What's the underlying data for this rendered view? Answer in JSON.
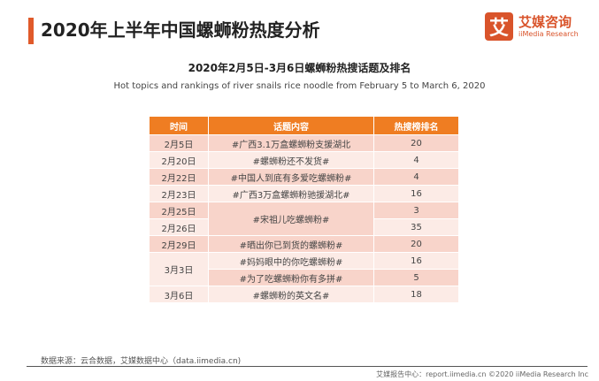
{
  "header": {
    "title": "2020年上半年中国螺蛳粉热度分析"
  },
  "logo": {
    "mark": "艾",
    "cn": "艾媒咨询",
    "en": "iiMedia Research",
    "color": "#d9542b"
  },
  "subtitle_cn": "2020年2月5日-3月6日螺蛳粉热搜话题及排名",
  "subtitle_en": "Hot topics and rankings of river snails rice noodle from February 5 to March 6, 2020",
  "table": {
    "headers": [
      "时间",
      "话题内容",
      "热搜榜排名"
    ],
    "rows": [
      {
        "date": "2月5日",
        "topic": "#广西3.1万盒螺蛳粉支援湖北",
        "rank": "20"
      },
      {
        "date": "2月20日",
        "topic": "#螺蛳粉还不发货#",
        "rank": "4"
      },
      {
        "date": "2月22日",
        "topic": "#中国人到底有多爱吃螺蛳粉#",
        "rank": "4"
      },
      {
        "date": "2月23日",
        "topic": "#广西3万盒螺蛳粉驰援湖北#",
        "rank": "16"
      },
      {
        "date": "2月25日",
        "topic": "#宋祖儿吃螺蛳粉#",
        "rank": "3"
      },
      {
        "date": "2月26日",
        "rank": "35"
      },
      {
        "date": "2月29日",
        "topic": "#晒出你已到货的螺蛳粉#",
        "rank": "20"
      },
      {
        "date": "3月3日",
        "topic": "#妈妈眼中的你吃螺蛳粉#",
        "rank": "16"
      },
      {
        "topic": "#为了吃螺蛳粉你有多拼#",
        "rank": "5"
      },
      {
        "date": "3月6日",
        "topic": "#螺蛳粉的英文名#",
        "rank": "18"
      }
    ],
    "header_color": "#ef7d22"
  },
  "footer": {
    "source": "数据来源：云合数据，艾媒数据中心（data.iimedia.cn)",
    "credit": "艾媒报告中心：report.iimedia.cn  ©2020  iiMedia Research  Inc"
  }
}
